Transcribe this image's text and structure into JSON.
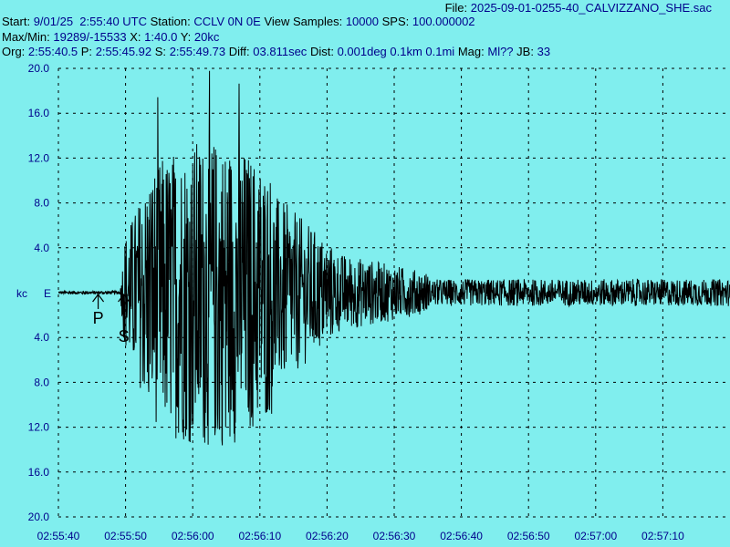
{
  "header": {
    "file_label": "File:",
    "file_name": "2025-09-01-0255-40_CALVIZZANO_SHE.sac",
    "start_label": "Start:",
    "start_value": "9/01/25  2:55:40 UTC",
    "station_label": "Station:",
    "station_value": "CCLV 0N 0E",
    "view_samples_label": "View Samples:",
    "view_samples_value": "10000",
    "sps_label": "SPS:",
    "sps_value": "100.000002",
    "maxmin_label": "Max/Min:",
    "maxmin_value": "19289/-15533",
    "x_label": "X:",
    "x_value": "1:40.0",
    "y_label": "Y:",
    "y_value": "20kc",
    "org_label": "Org:",
    "org_value": "2:55:40.5",
    "p_label": "P:",
    "p_value": "2:55:45.92",
    "s_label": "S:",
    "s_value": "2:55:49.73",
    "diff_label": "Diff:",
    "diff_value": "03.811sec",
    "dist_label": "Dist:",
    "dist_value": "0.001deg 0.1km 0.1mi",
    "mag_label": "Mag:",
    "mag_value": "Ml??",
    "jb_label": "JB:",
    "jb_value": "33"
  },
  "chart_data": {
    "type": "line",
    "ylabel": "kc",
    "component": "E",
    "ylim": [
      -20,
      20
    ],
    "y_ticks": [
      "20.0",
      "16.0",
      "12.0",
      "8.0",
      "4.0",
      "4.0",
      "8.0",
      "12.0",
      "16.0",
      "20.0"
    ],
    "y_tick_values": [
      20,
      16,
      12,
      8,
      4,
      -4,
      -8,
      -12,
      -16,
      -20
    ],
    "x_ticks": [
      "02:55:40",
      "02:55:50",
      "02:56:00",
      "02:56:10",
      "02:56:20",
      "02:56:30",
      "02:56:40",
      "02:56:50",
      "02:57:00",
      "02:57:10"
    ],
    "x_tick_seconds": [
      0,
      10,
      20,
      30,
      40,
      50,
      60,
      70,
      80,
      90
    ],
    "xlim_seconds": [
      0,
      100
    ],
    "grid": true,
    "markers": [
      {
        "label": "P",
        "time": "2:55:45.92"
      },
      {
        "label": "S",
        "time": "2:55:49.73"
      }
    ],
    "max": 19289,
    "min": -15533
  },
  "colors": {
    "background": "#80eeee",
    "text": "#000000",
    "value_text": "#00008b",
    "trace": "#000000",
    "grid": "#000000"
  }
}
